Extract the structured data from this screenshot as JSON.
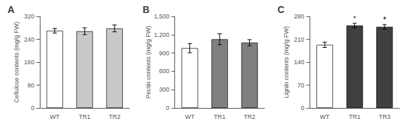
{
  "chart_data": [
    {
      "type": "bar",
      "title": "A",
      "ylabel": "Cellulose contents (mg/g FW)",
      "categories": [
        "WT",
        "TR1",
        "TR2"
      ],
      "values": [
        270,
        268,
        278
      ],
      "errors": [
        8,
        12,
        12
      ],
      "colors": [
        "white",
        "#c8c8c8",
        "#c8c8c8"
      ],
      "ylim": [
        0,
        320
      ],
      "yticks": [
        0,
        80,
        160,
        240,
        320
      ],
      "grid": false,
      "annotations": []
    },
    {
      "type": "bar",
      "title": "B",
      "ylabel": "Pectin contents (mg/g FW)",
      "categories": [
        "WT",
        "TR1",
        "TR2"
      ],
      "values": [
        980,
        1125,
        1070
      ],
      "errors": [
        75,
        90,
        50
      ],
      "colors": [
        "white",
        "#808080",
        "#808080"
      ],
      "ylim": [
        0,
        1500
      ],
      "yticks": [
        0,
        300,
        600,
        900,
        1200,
        1500
      ],
      "grid": false,
      "annotations": []
    },
    {
      "type": "bar",
      "title": "C",
      "ylabel": "Lignin contents (mg/g FW)",
      "categories": [
        "WT",
        "TR1",
        "TR3"
      ],
      "values": [
        193,
        252,
        248
      ],
      "errors": [
        8,
        7,
        7
      ],
      "colors": [
        "white",
        "#404040",
        "#404040"
      ],
      "ylim": [
        0,
        280
      ],
      "yticks": [
        0,
        70,
        140,
        210,
        280
      ],
      "grid": false,
      "annotations": [
        {
          "x": "TR1",
          "text": "*"
        },
        {
          "x": "TR3",
          "text": "*"
        }
      ]
    }
  ]
}
